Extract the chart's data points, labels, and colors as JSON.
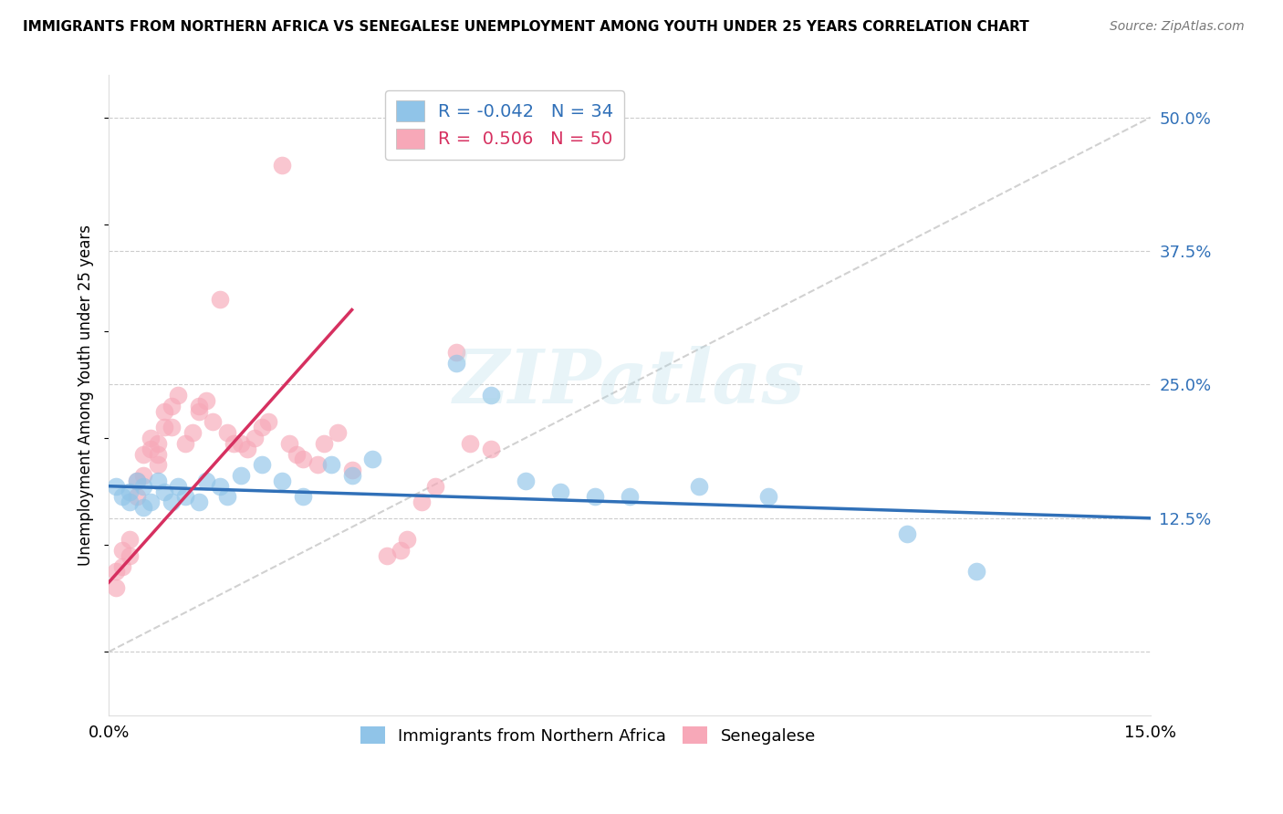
{
  "title": "IMMIGRANTS FROM NORTHERN AFRICA VS SENEGALESE UNEMPLOYMENT AMONG YOUTH UNDER 25 YEARS CORRELATION CHART",
  "source": "Source: ZipAtlas.com",
  "ylabel": "Unemployment Among Youth under 25 years",
  "xlim": [
    0.0,
    0.15
  ],
  "ylim": [
    -0.06,
    0.54
  ],
  "right_yticks": [
    0.0,
    0.125,
    0.25,
    0.375,
    0.5
  ],
  "right_yticklabels": [
    "",
    "12.5%",
    "25.0%",
    "37.5%",
    "50.0%"
  ],
  "xticks": [
    0.0,
    0.025,
    0.05,
    0.075,
    0.1,
    0.125,
    0.15
  ],
  "xticklabels": [
    "0.0%",
    "",
    "",
    "",
    "",
    "",
    "15.0%"
  ],
  "legend_r1": "R = -0.042",
  "legend_n1": "N = 34",
  "legend_r2": "R =  0.506",
  "legend_n2": "N = 50",
  "blue_color": "#90c4e8",
  "pink_color": "#f7a8b8",
  "blue_line_color": "#3070b8",
  "pink_line_color": "#d63060",
  "legend_label1": "Immigrants from Northern Africa",
  "legend_label2": "Senegalese",
  "watermark_text": "ZIPatlas",
  "blue_scatter_x": [
    0.001,
    0.002,
    0.003,
    0.003,
    0.004,
    0.005,
    0.005,
    0.006,
    0.007,
    0.008,
    0.009,
    0.01,
    0.011,
    0.013,
    0.014,
    0.016,
    0.017,
    0.019,
    0.022,
    0.025,
    0.028,
    0.032,
    0.035,
    0.038,
    0.05,
    0.055,
    0.06,
    0.065,
    0.07,
    0.075,
    0.085,
    0.095,
    0.115,
    0.125
  ],
  "blue_scatter_y": [
    0.155,
    0.145,
    0.14,
    0.15,
    0.16,
    0.135,
    0.155,
    0.14,
    0.16,
    0.15,
    0.14,
    0.155,
    0.145,
    0.14,
    0.16,
    0.155,
    0.145,
    0.165,
    0.175,
    0.16,
    0.145,
    0.175,
    0.165,
    0.18,
    0.27,
    0.24,
    0.16,
    0.15,
    0.145,
    0.145,
    0.155,
    0.145,
    0.11,
    0.075
  ],
  "pink_scatter_x": [
    0.001,
    0.001,
    0.002,
    0.002,
    0.003,
    0.003,
    0.004,
    0.004,
    0.005,
    0.005,
    0.006,
    0.006,
    0.007,
    0.007,
    0.007,
    0.008,
    0.008,
    0.009,
    0.009,
    0.01,
    0.011,
    0.012,
    0.013,
    0.013,
    0.014,
    0.015,
    0.016,
    0.017,
    0.018,
    0.019,
    0.02,
    0.021,
    0.022,
    0.023,
    0.025,
    0.026,
    0.027,
    0.028,
    0.03,
    0.031,
    0.033,
    0.035,
    0.04,
    0.042,
    0.043,
    0.045,
    0.047,
    0.05,
    0.052,
    0.055
  ],
  "pink_scatter_y": [
    0.06,
    0.075,
    0.08,
    0.095,
    0.09,
    0.105,
    0.145,
    0.16,
    0.165,
    0.185,
    0.19,
    0.2,
    0.185,
    0.175,
    0.195,
    0.21,
    0.225,
    0.21,
    0.23,
    0.24,
    0.195,
    0.205,
    0.23,
    0.225,
    0.235,
    0.215,
    0.33,
    0.205,
    0.195,
    0.195,
    0.19,
    0.2,
    0.21,
    0.215,
    0.455,
    0.195,
    0.185,
    0.18,
    0.175,
    0.195,
    0.205,
    0.17,
    0.09,
    0.095,
    0.105,
    0.14,
    0.155,
    0.28,
    0.195,
    0.19
  ],
  "diag_line_x": [
    0.0,
    0.15
  ],
  "diag_line_y": [
    0.0,
    0.5
  ],
  "blue_line_x": [
    0.0,
    0.15
  ],
  "blue_line_y": [
    0.155,
    0.125
  ],
  "pink_line_x": [
    0.0,
    0.035
  ],
  "pink_line_y": [
    0.065,
    0.32
  ]
}
